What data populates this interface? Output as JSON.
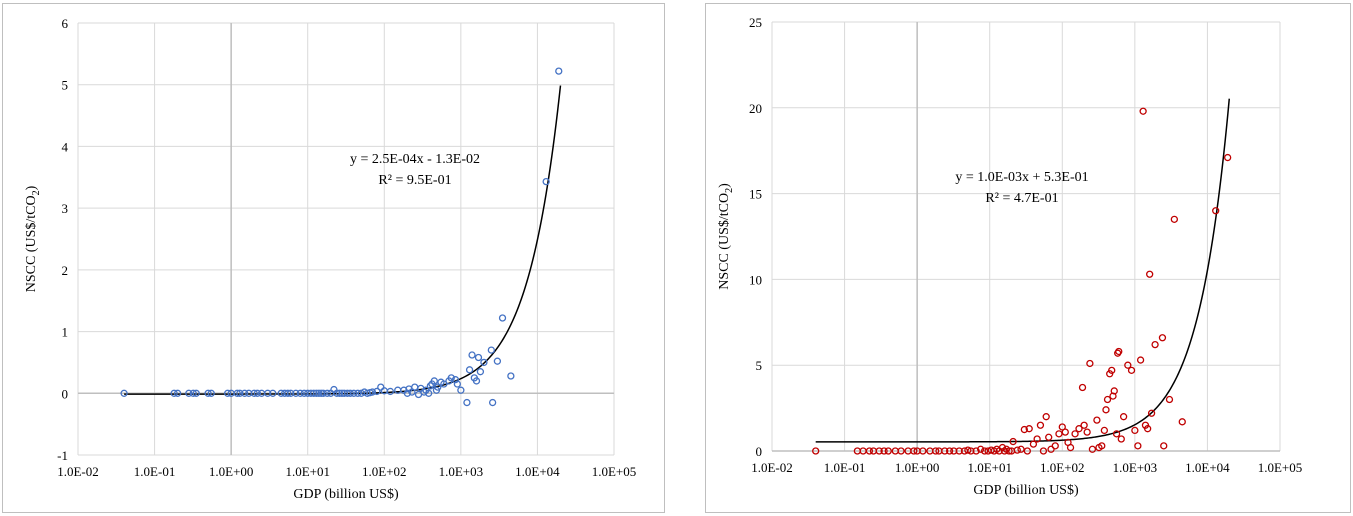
{
  "chart_data": [
    {
      "type": "scatter",
      "title": "",
      "xlabel": "GDP (billion US$)",
      "ylabel_main": "NSCC (US$/tCO",
      "ylabel_sub": "2",
      "ylabel_end": ")",
      "x_scale": "log",
      "xlim": [
        0.01,
        100000
      ],
      "ylim": [
        -1,
        6
      ],
      "x_ticks": [
        0.01,
        0.1,
        1,
        10,
        100,
        1000,
        10000,
        100000
      ],
      "x_tick_labels": [
        "1.0E-02",
        "1.0E-01",
        "1.0E+00",
        "1.0E+01",
        "1.0E+02",
        "1.0E+03",
        "1.0E+04",
        "1.0E+05"
      ],
      "y_ticks": [
        -1,
        0,
        1,
        2,
        3,
        4,
        5,
        6
      ],
      "y_tick_labels": [
        "-1",
        "0",
        "1",
        "2",
        "3",
        "4",
        "5",
        "6"
      ],
      "grid": true,
      "marker_color": "#4472c4",
      "trendline": {
        "slope": 0.00025,
        "intercept": -0.013,
        "x_range": [
          0.04,
          20000
        ],
        "equation": "y = 2.5E-04x - 1.3E-02",
        "r2": "R² = 9.5E-01",
        "color": "#000000"
      },
      "points": [
        [
          0.04,
          0.0
        ],
        [
          0.18,
          0.0
        ],
        [
          0.2,
          0.0
        ],
        [
          0.28,
          0.0
        ],
        [
          0.32,
          0.0
        ],
        [
          0.35,
          0.0
        ],
        [
          0.5,
          0.0
        ],
        [
          0.55,
          0.0
        ],
        [
          0.9,
          0.0
        ],
        [
          1.0,
          0.0
        ],
        [
          1.2,
          0.0
        ],
        [
          1.3,
          0.0
        ],
        [
          1.5,
          0.0
        ],
        [
          1.7,
          0.0
        ],
        [
          2.0,
          0.0
        ],
        [
          2.2,
          0.0
        ],
        [
          2.5,
          0.0
        ],
        [
          3.0,
          0.0
        ],
        [
          3.5,
          0.0
        ],
        [
          4.5,
          0.0
        ],
        [
          5.0,
          0.0
        ],
        [
          5.5,
          0.0
        ],
        [
          6.0,
          0.0
        ],
        [
          7.0,
          0.0
        ],
        [
          8.0,
          0.0
        ],
        [
          9.0,
          0.0
        ],
        [
          10.0,
          0.0
        ],
        [
          11.0,
          0.0
        ],
        [
          12.0,
          0.0
        ],
        [
          13.0,
          0.0
        ],
        [
          14.0,
          0.0
        ],
        [
          15.0,
          0.0
        ],
        [
          16.0,
          0.0
        ],
        [
          18.0,
          0.0
        ],
        [
          20.0,
          0.0
        ],
        [
          22.0,
          0.06
        ],
        [
          24.0,
          0.0
        ],
        [
          26.0,
          0.0
        ],
        [
          28.0,
          0.0
        ],
        [
          30.0,
          0.0
        ],
        [
          33.0,
          0.0
        ],
        [
          36.0,
          0.0
        ],
        [
          40.0,
          0.0
        ],
        [
          45.0,
          0.0
        ],
        [
          50.0,
          0.0
        ],
        [
          55.0,
          0.02
        ],
        [
          60.0,
          0.0
        ],
        [
          65.0,
          0.01
        ],
        [
          70.0,
          0.02
        ],
        [
          80.0,
          0.03
        ],
        [
          90.0,
          0.1
        ],
        [
          100.0,
          0.04
        ],
        [
          120.0,
          0.03
        ],
        [
          150.0,
          0.05
        ],
        [
          180.0,
          0.05
        ],
        [
          200.0,
          0.0
        ],
        [
          210.0,
          0.07
        ],
        [
          230.0,
          0.02
        ],
        [
          250.0,
          0.1
        ],
        [
          280.0,
          -0.02
        ],
        [
          300.0,
          0.08
        ],
        [
          330.0,
          0.02
        ],
        [
          350.0,
          0.05
        ],
        [
          380.0,
          0.0
        ],
        [
          400.0,
          0.12
        ],
        [
          420.0,
          0.15
        ],
        [
          450.0,
          0.2
        ],
        [
          480.0,
          0.05
        ],
        [
          500.0,
          0.1
        ],
        [
          550.0,
          0.18
        ],
        [
          600.0,
          0.15
        ],
        [
          700.0,
          0.2
        ],
        [
          750.0,
          0.25
        ],
        [
          850.0,
          0.22
        ],
        [
          900.0,
          0.15
        ],
        [
          1000.0,
          0.05
        ],
        [
          1200.0,
          -0.15
        ],
        [
          1300.0,
          0.38
        ],
        [
          1400.0,
          0.62
        ],
        [
          1500.0,
          0.25
        ],
        [
          1600.0,
          0.2
        ],
        [
          1700.0,
          0.58
        ],
        [
          1800.0,
          0.35
        ],
        [
          2000.0,
          0.5
        ],
        [
          2500.0,
          0.7
        ],
        [
          2600.0,
          -0.15
        ],
        [
          3000.0,
          0.52
        ],
        [
          3500.0,
          1.22
        ],
        [
          4500.0,
          0.28
        ],
        [
          13000.0,
          3.43
        ],
        [
          19000.0,
          5.22
        ]
      ]
    },
    {
      "type": "scatter",
      "title": "",
      "xlabel": "GDP (billion US$)",
      "ylabel_main": "NSCC (US$/tCO",
      "ylabel_sub": "2",
      "ylabel_end": ")",
      "x_scale": "log",
      "xlim": [
        0.01,
        100000
      ],
      "ylim": [
        0,
        25
      ],
      "x_ticks": [
        0.01,
        0.1,
        1,
        10,
        100,
        1000,
        10000,
        100000
      ],
      "x_tick_labels": [
        "1.0E-02",
        "1.0E-01",
        "1.0E+00",
        "1.0E+01",
        "1.0E+02",
        "1.0E+03",
        "1.0E+04",
        "1.0E+05"
      ],
      "y_ticks": [
        0,
        5,
        10,
        15,
        20,
        25
      ],
      "y_tick_labels": [
        "0",
        "5",
        "10",
        "15",
        "20",
        "25"
      ],
      "grid": true,
      "marker_color": "#c00000",
      "trendline": {
        "slope": 0.001,
        "intercept": 0.53,
        "x_range": [
          0.04,
          20000
        ],
        "equation": "y = 1.0E-03x + 5.3E-01",
        "r2": "R² = 4.7E-01",
        "color": "#000000"
      },
      "points": [
        [
          0.04,
          0.0
        ],
        [
          0.15,
          0.0
        ],
        [
          0.18,
          0.0
        ],
        [
          0.22,
          0.0
        ],
        [
          0.25,
          0.0
        ],
        [
          0.3,
          0.0
        ],
        [
          0.35,
          0.0
        ],
        [
          0.4,
          0.0
        ],
        [
          0.5,
          0.0
        ],
        [
          0.6,
          0.0
        ],
        [
          0.75,
          0.0
        ],
        [
          0.9,
          0.0
        ],
        [
          1.0,
          0.0
        ],
        [
          1.2,
          0.0
        ],
        [
          1.5,
          0.0
        ],
        [
          1.8,
          0.0
        ],
        [
          2.0,
          0.0
        ],
        [
          2.4,
          0.0
        ],
        [
          2.8,
          0.0
        ],
        [
          3.2,
          0.0
        ],
        [
          3.8,
          0.0
        ],
        [
          4.5,
          0.0
        ],
        [
          5.0,
          0.05
        ],
        [
          5.5,
          0.0
        ],
        [
          6.5,
          0.0
        ],
        [
          7.5,
          0.1
        ],
        [
          8.5,
          0.0
        ],
        [
          9.5,
          0.0
        ],
        [
          10.5,
          0.05
        ],
        [
          11.5,
          0.0
        ],
        [
          12.5,
          0.1
        ],
        [
          13.5,
          0.0
        ],
        [
          15.0,
          0.2
        ],
        [
          16.0,
          0.0
        ],
        [
          17.0,
          0.1
        ],
        [
          18.5,
          0.0
        ],
        [
          20.0,
          0.0
        ],
        [
          21.0,
          0.55
        ],
        [
          24.0,
          0.05
        ],
        [
          27.0,
          0.1
        ],
        [
          30.0,
          1.25
        ],
        [
          33.0,
          0.0
        ],
        [
          35.0,
          1.3
        ],
        [
          40.0,
          0.4
        ],
        [
          45.0,
          0.7
        ],
        [
          50.0,
          1.5
        ],
        [
          55.0,
          0.0
        ],
        [
          60.0,
          2.0
        ],
        [
          65.0,
          0.8
        ],
        [
          70.0,
          0.1
        ],
        [
          80.0,
          0.3
        ],
        [
          90.0,
          1.0
        ],
        [
          100.0,
          1.4
        ],
        [
          110.0,
          1.1
        ],
        [
          120.0,
          0.5
        ],
        [
          130.0,
          0.2
        ],
        [
          150.0,
          1.0
        ],
        [
          170.0,
          1.3
        ],
        [
          190.0,
          3.7
        ],
        [
          200.0,
          1.5
        ],
        [
          220.0,
          1.1
        ],
        [
          240.0,
          5.1
        ],
        [
          260.0,
          0.1
        ],
        [
          300.0,
          1.8
        ],
        [
          320.0,
          0.2
        ],
        [
          350.0,
          0.3
        ],
        [
          380.0,
          1.2
        ],
        [
          400.0,
          2.4
        ],
        [
          420.0,
          3.0
        ],
        [
          450.0,
          4.5
        ],
        [
          480.0,
          4.7
        ],
        [
          500.0,
          3.2
        ],
        [
          520.0,
          3.5
        ],
        [
          560.0,
          1.0
        ],
        [
          580.0,
          5.7
        ],
        [
          600.0,
          5.8
        ],
        [
          650.0,
          0.7
        ],
        [
          700.0,
          2.0
        ],
        [
          800.0,
          5.0
        ],
        [
          900.0,
          4.7
        ],
        [
          1000.0,
          1.2
        ],
        [
          1100.0,
          0.3
        ],
        [
          1200.0,
          5.3
        ],
        [
          1300.0,
          19.8
        ],
        [
          1400.0,
          1.5
        ],
        [
          1500.0,
          1.3
        ],
        [
          1600.0,
          10.3
        ],
        [
          1700.0,
          2.2
        ],
        [
          1900.0,
          6.2
        ],
        [
          2400.0,
          6.6
        ],
        [
          2500.0,
          0.3
        ],
        [
          3000.0,
          3.0
        ],
        [
          3500.0,
          13.5
        ],
        [
          4500.0,
          1.7
        ],
        [
          13000.0,
          14.0
        ],
        [
          19000.0,
          17.1
        ]
      ]
    }
  ]
}
